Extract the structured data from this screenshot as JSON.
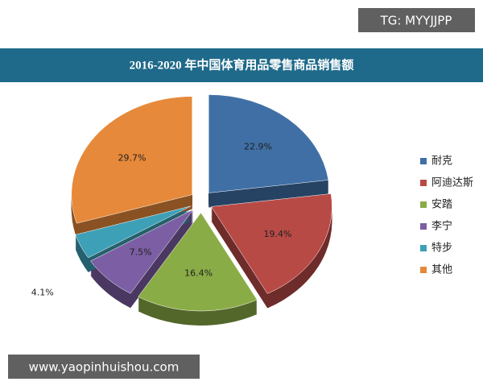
{
  "chart_data": {
    "type": "pie",
    "title": "2016-2020 年中国体育用品零售商品销售额",
    "categories": [
      "耐克",
      "阿迪达斯",
      "安踏",
      "李宁",
      "特步",
      "其他"
    ],
    "values": [
      22.9,
      19.4,
      16.4,
      7.5,
      4.1,
      29.7
    ],
    "value_labels": [
      "22.9%",
      "19.4%",
      "16.4%",
      "7.5%",
      "4.1%",
      "29.7%"
    ],
    "colors": [
      "#3f6fa5",
      "#b84a46",
      "#8aac46",
      "#7b5ea3",
      "#3ea0b7",
      "#e6893a"
    ],
    "legend": "right",
    "annotations": [
      "TG: MYYJJPP",
      "www.yaopinhuishou.com"
    ]
  }
}
